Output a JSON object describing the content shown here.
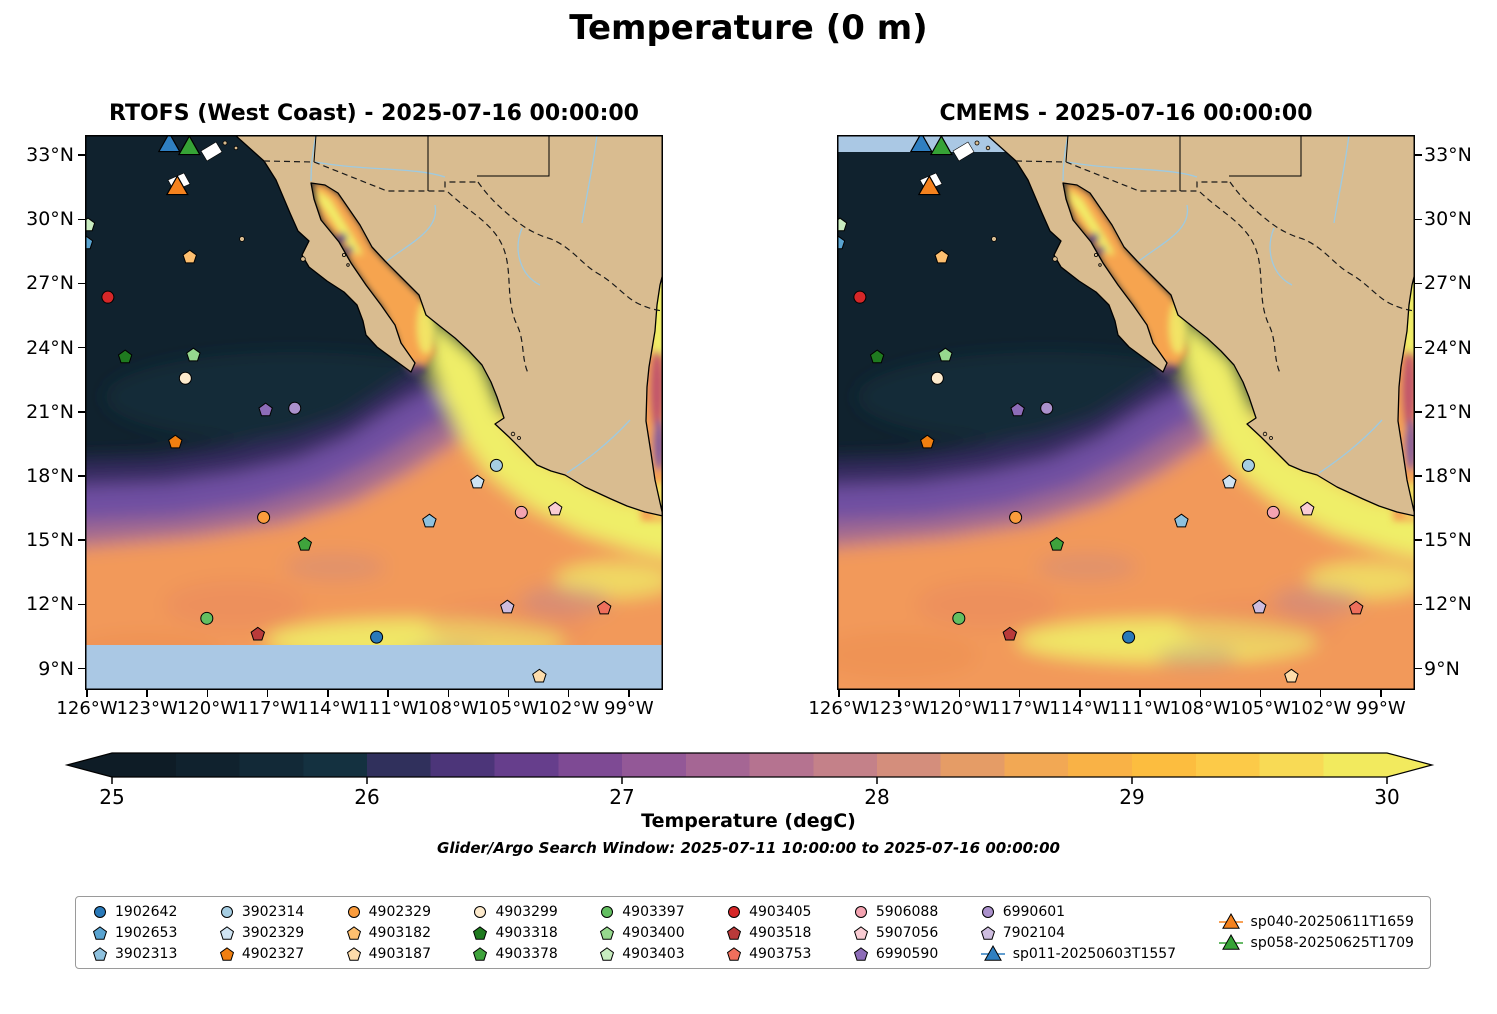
{
  "title": "Temperature (0 m)",
  "subtitle_window": "Glider/Argo Search Window: 2025-07-11 10:00:00 to 2025-07-16 00:00:00",
  "map_colors": {
    "land": "#d9bc90",
    "ocean_deep": "#10222e",
    "nodata": "#aac8e4",
    "river": "#9ecae1"
  },
  "chart_data": {
    "type": "heatmap",
    "variable": "Temperature (degC)",
    "depth_label": "0 m",
    "panels": [
      {
        "model": "RTOFS (West Coast)",
        "valid_time": "2025-07-16 00:00:00",
        "title": "RTOFS (West Coast) - 2025-07-16 00:00:00",
        "nodata_band": "bottom"
      },
      {
        "model": "CMEMS",
        "valid_time": "2025-07-16 00:00:00",
        "title": "CMEMS - 2025-07-16 00:00:00",
        "nodata_band": "top"
      }
    ],
    "axes": {
      "extent": {
        "lon_min": -126.1,
        "lon_max": -97.3,
        "lat_min": 8.0,
        "lat_max": 33.94
      },
      "lon_ticks": [
        {
          "label": "126°W",
          "value": -126
        },
        {
          "label": "123°W",
          "value": -123
        },
        {
          "label": "120°W",
          "value": -120
        },
        {
          "label": "117°W",
          "value": -117
        },
        {
          "label": "114°W",
          "value": -114
        },
        {
          "label": "111°W",
          "value": -111
        },
        {
          "label": "108°W",
          "value": -108
        },
        {
          "label": "105°W",
          "value": -105
        },
        {
          "label": "102°W",
          "value": -102
        },
        {
          "label": "99°W",
          "value": -99
        }
      ],
      "lat_ticks": [
        {
          "label": "33°N",
          "value": 33
        },
        {
          "label": "30°N",
          "value": 30
        },
        {
          "label": "27°N",
          "value": 27
        },
        {
          "label": "24°N",
          "value": 24
        },
        {
          "label": "21°N",
          "value": 21
        },
        {
          "label": "18°N",
          "value": 18
        },
        {
          "label": "15°N",
          "value": 15
        },
        {
          "label": "12°N",
          "value": 12
        },
        {
          "label": "9°N",
          "value": 9
        }
      ]
    },
    "colorbar": {
      "label": "Temperature (degC)",
      "vmin": 25,
      "vmax": 30,
      "ticks": [
        25,
        26,
        27,
        28,
        29,
        30
      ],
      "band_colors": [
        "#0e1c26",
        "#10222e",
        "#122937",
        "#143140",
        "#30305c",
        "#4c3579",
        "#663e8c",
        "#7e4a94",
        "#935897",
        "#a56694",
        "#b57390",
        "#c48189",
        "#d48e7c",
        "#e59c66",
        "#f2a854",
        "#f9b246",
        "#fcbd3f",
        "#fcca48",
        "#f8da55",
        "#f2ea5e"
      ],
      "under_color": "#0c1922",
      "over_color": "#f0f261"
    },
    "platforms": {
      "argo_floats": [
        {
          "id": "1902642",
          "marker": "circle",
          "color": "#2979b9",
          "lon": -111.57,
          "lat": 10.47
        },
        {
          "id": "1902653",
          "marker": "pentagon",
          "color": "#59a3d0",
          "lon": -126.05,
          "lat": 28.89
        },
        {
          "id": "3902313",
          "marker": "pentagon",
          "color": "#8ec1de",
          "lon": -108.94,
          "lat": 15.89
        },
        {
          "id": "3902314",
          "marker": "circle",
          "color": "#a6cee3",
          "lon": -105.6,
          "lat": 18.5
        },
        {
          "id": "3902329",
          "marker": "pentagon",
          "color": "#cfe3f2",
          "lon": -106.55,
          "lat": 17.71
        },
        {
          "id": "4902327",
          "marker": "pentagon",
          "color": "#f07f10",
          "lon": -121.6,
          "lat": 19.58
        },
        {
          "id": "4902329",
          "marker": "circle",
          "color": "#fb9c3c",
          "lon": -117.2,
          "lat": 16.07
        },
        {
          "id": "4903182",
          "marker": "pentagon",
          "color": "#fdbf6f",
          "lon": -120.88,
          "lat": 28.23
        },
        {
          "id": "4903187",
          "marker": "pentagon",
          "color": "#fddcab",
          "lon": -103.46,
          "lat": 8.64
        },
        {
          "id": "4903299",
          "marker": "circle",
          "color": "#fdeacc",
          "lon": -121.1,
          "lat": 22.57
        },
        {
          "id": "4903318",
          "marker": "pentagon",
          "color": "#1f7a1f",
          "lon": -124.1,
          "lat": 23.56
        },
        {
          "id": "4903378",
          "marker": "pentagon",
          "color": "#3fa33c",
          "lon": -115.15,
          "lat": 14.8
        },
        {
          "id": "4903397",
          "marker": "circle",
          "color": "#63bf61",
          "lon": -120.03,
          "lat": 11.35
        },
        {
          "id": "4903400",
          "marker": "pentagon",
          "color": "#96d88e",
          "lon": -120.7,
          "lat": 23.65
        },
        {
          "id": "4903403",
          "marker": "pentagon",
          "color": "#c8ecc0",
          "lon": -125.95,
          "lat": 29.73
        },
        {
          "id": "4903405",
          "marker": "circle",
          "color": "#d62728",
          "lon": -124.96,
          "lat": 26.36
        },
        {
          "id": "4903518",
          "marker": "pentagon",
          "color": "#b93a3a",
          "lon": -117.49,
          "lat": 10.6
        },
        {
          "id": "4903753",
          "marker": "pentagon",
          "color": "#ef6f5c",
          "lon": -100.23,
          "lat": 11.82
        },
        {
          "id": "5906088",
          "marker": "circle",
          "color": "#f4a3b1",
          "lon": -104.36,
          "lat": 16.3
        },
        {
          "id": "5907056",
          "marker": "pentagon",
          "color": "#f9ccd3",
          "lon": -102.67,
          "lat": 16.45
        },
        {
          "id": "6990590",
          "marker": "pentagon",
          "color": "#8d6cb8",
          "lon": -117.1,
          "lat": 21.08
        },
        {
          "id": "6990601",
          "marker": "circle",
          "color": "#ab91cc",
          "lon": -115.65,
          "lat": 21.17
        },
        {
          "id": "7902104",
          "marker": "pentagon",
          "color": "#cebddf",
          "lon": -105.06,
          "lat": 11.87
        }
      ],
      "gliders": [
        {
          "id": "sp011-20250603T1557",
          "color": "#2f7fc1",
          "lon": -121.9,
          "lat": 33.61
        },
        {
          "id": "sp040-20250611T1659",
          "color": "#f5821e",
          "lon": -121.5,
          "lat": 31.6
        },
        {
          "id": "sp058-20250625T1709",
          "color": "#36a336",
          "lon": -120.9,
          "lat": 33.47
        }
      ]
    }
  }
}
